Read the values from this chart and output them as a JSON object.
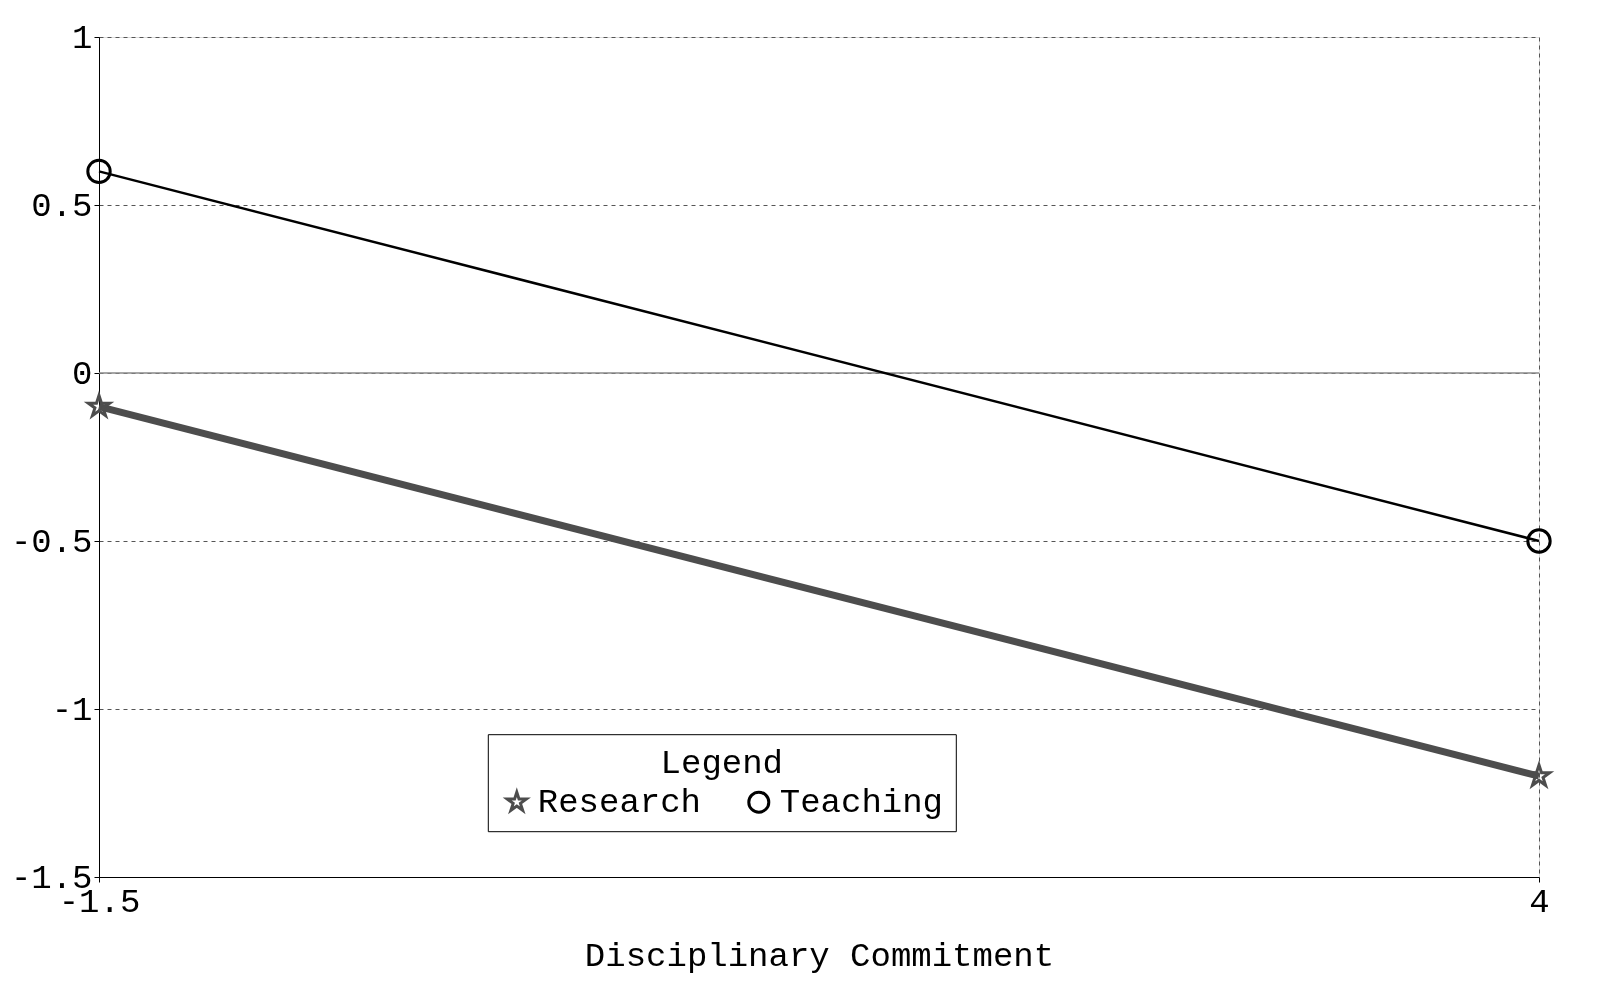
{
  "chart_data": {
    "type": "line",
    "xlabel": "Disciplinary Commitment",
    "legend_title": "Legend",
    "x": [
      -1.5,
      4
    ],
    "series": [
      {
        "name": "Research",
        "color": "#4d4d4d",
        "values": [
          -0.1,
          -1.2
        ],
        "marker": "star"
      },
      {
        "name": "Teaching",
        "color": "#000000",
        "values": [
          0.6,
          -0.5
        ],
        "marker": "circle"
      }
    ],
    "xlim": [
      -1.5,
      4
    ],
    "xticks": [
      -1.5,
      4
    ],
    "ylim": [
      -1.5,
      1
    ],
    "yticks": [
      -1.5,
      -1,
      -0.5,
      0,
      0.5,
      1
    ],
    "ref_lines": [
      {
        "axis": "y",
        "value": 0,
        "color": "#888888",
        "line_style": "solid"
      }
    ],
    "grid": true,
    "legend": "bottom",
    "line_style": "solid"
  }
}
